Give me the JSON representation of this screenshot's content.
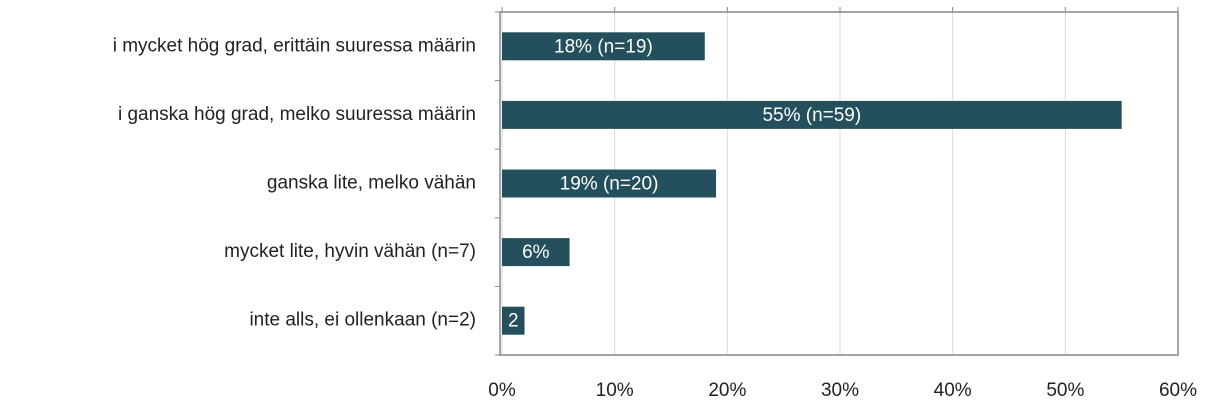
{
  "chart_data": {
    "type": "barh",
    "categories": [
      "i mycket hög grad, erittäin suuressa määrin",
      "i ganska hög grad, melko suuressa määrin",
      "ganska lite, melko vähän",
      "mycket lite, hyvin vähän (n=7)",
      "inte alls, ei ollenkaan (n=2)"
    ],
    "values": [
      18,
      55,
      19,
      6,
      2
    ],
    "value_labels": [
      "18% (n=19)",
      "55% (n=59)",
      "19% (n=20)",
      "6%",
      "2"
    ],
    "color": "#244f5d",
    "xlim": [
      0,
      60
    ],
    "xticks": [
      {
        "value": 0,
        "label": "0%"
      },
      {
        "value": 10,
        "label": "10%"
      },
      {
        "value": 20,
        "label": "20%"
      },
      {
        "value": 30,
        "label": "30%"
      },
      {
        "value": 40,
        "label": "40%"
      },
      {
        "value": 50,
        "label": "50%"
      },
      {
        "value": 60,
        "label": "60%"
      }
    ],
    "grid": true
  }
}
